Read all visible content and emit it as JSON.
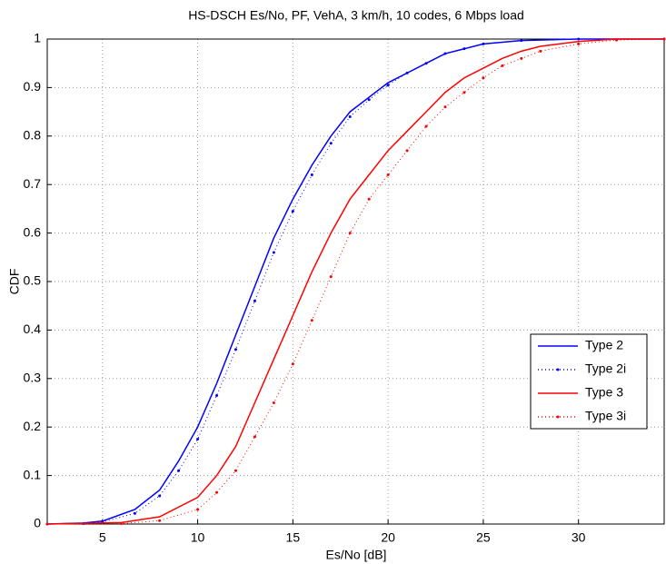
{
  "chart_data": {
    "type": "line",
    "title": "HS-DSCH Es/No, PF, VehA, 3 km/h, 10 codes, 6 Mbps load",
    "x_label": "Es/No [dB]",
    "y_label": "CDF",
    "xlim": [
      2.1,
      34.5
    ],
    "ylim": [
      0,
      1
    ],
    "xticks": [
      5,
      10,
      15,
      20,
      25,
      30
    ],
    "yticks": [
      0,
      0.1,
      0.2,
      0.3,
      0.4,
      0.5,
      0.6,
      0.7,
      0.8,
      0.9,
      1
    ],
    "grid": true,
    "legend": "lower right",
    "series": [
      {
        "name": "Type 2",
        "color": "#0000ff",
        "style": "solid",
        "x": [
          2.1,
          4,
          5,
          6.7,
          8,
          9,
          10,
          11,
          12,
          13,
          14,
          15,
          16,
          17,
          18,
          19,
          20,
          21,
          22,
          23,
          24,
          25,
          27,
          30,
          34.5
        ],
        "values": [
          0,
          0.002,
          0.006,
          0.03,
          0.07,
          0.13,
          0.2,
          0.29,
          0.39,
          0.49,
          0.59,
          0.67,
          0.74,
          0.8,
          0.85,
          0.88,
          0.91,
          0.93,
          0.95,
          0.97,
          0.98,
          0.99,
          0.997,
          1,
          1
        ]
      },
      {
        "name": "Type 2i",
        "color": "#0000ff",
        "style": "dotted",
        "x": [
          2.1,
          4,
          5,
          6.7,
          8,
          9,
          10,
          11,
          12,
          13,
          14,
          15,
          16,
          17,
          18,
          19,
          20,
          21,
          22,
          23,
          24,
          25,
          27,
          30,
          34.5
        ],
        "values": [
          0,
          0.001,
          0.004,
          0.022,
          0.058,
          0.11,
          0.175,
          0.265,
          0.36,
          0.46,
          0.56,
          0.645,
          0.72,
          0.785,
          0.84,
          0.875,
          0.905,
          0.93,
          0.95,
          0.97,
          0.98,
          0.99,
          0.997,
          1,
          1
        ]
      },
      {
        "name": "Type 3",
        "color": "#ff0000",
        "style": "solid",
        "x": [
          2.1,
          6,
          8,
          10,
          11,
          12,
          13,
          14,
          15,
          16,
          17,
          18,
          19,
          20,
          21,
          22,
          23,
          24,
          25,
          26,
          27,
          28,
          30,
          32,
          34.5
        ],
        "values": [
          0,
          0.003,
          0.015,
          0.055,
          0.1,
          0.16,
          0.25,
          0.34,
          0.43,
          0.52,
          0.6,
          0.67,
          0.72,
          0.77,
          0.81,
          0.85,
          0.89,
          0.92,
          0.94,
          0.96,
          0.975,
          0.985,
          0.995,
          1,
          1
        ]
      },
      {
        "name": "Type 3i",
        "color": "#ff0000",
        "style": "dotted",
        "x": [
          2.1,
          6,
          8,
          10,
          11,
          12,
          13,
          14,
          15,
          16,
          17,
          18,
          19,
          20,
          21,
          22,
          23,
          24,
          25,
          26,
          27,
          28,
          30,
          32,
          34.5
        ],
        "values": [
          0,
          0.001,
          0.007,
          0.03,
          0.065,
          0.11,
          0.18,
          0.25,
          0.33,
          0.42,
          0.51,
          0.6,
          0.67,
          0.72,
          0.77,
          0.82,
          0.86,
          0.89,
          0.92,
          0.945,
          0.96,
          0.975,
          0.99,
          0.998,
          1
        ]
      }
    ]
  }
}
